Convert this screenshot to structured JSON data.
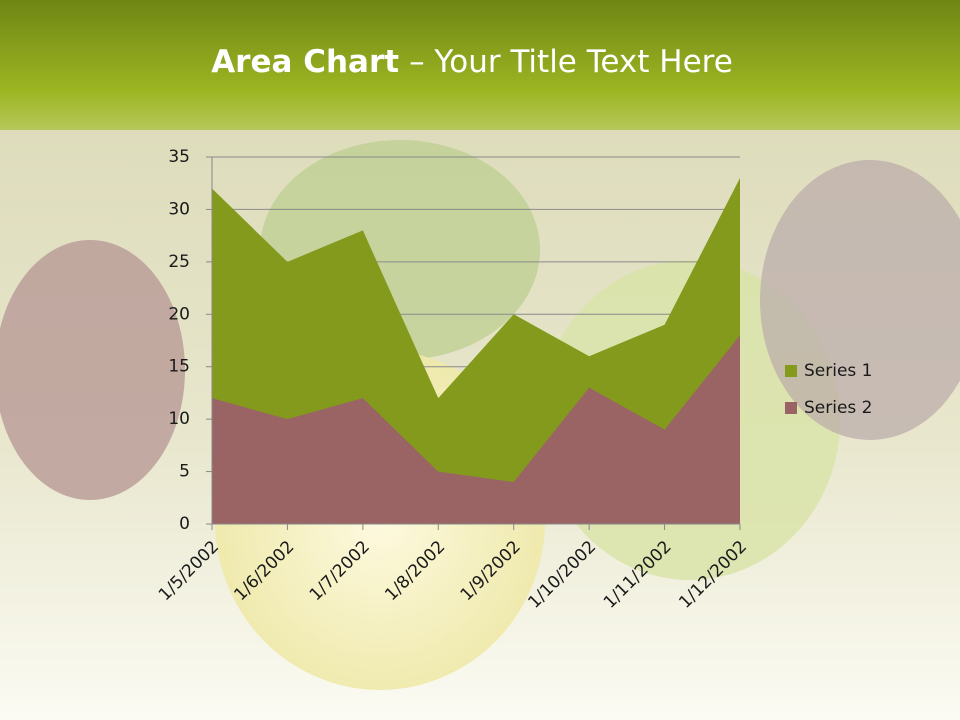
{
  "chart_data": {
    "type": "area",
    "title": "Area Chart",
    "subtitle": "– Your Title Text Here",
    "categories": [
      "1/5/2002",
      "1/6/2002",
      "1/7/2002",
      "1/8/2002",
      "1/9/2002",
      "1/10/2002",
      "1/11/2002",
      "1/12/2002"
    ],
    "series": [
      {
        "name": "Series 1",
        "color": "#839a1c",
        "values": [
          32,
          25,
          28,
          12,
          20,
          16,
          19,
          33
        ]
      },
      {
        "name": "Series 2",
        "color": "#9a6464",
        "values": [
          12,
          10,
          12,
          5,
          4,
          13,
          9,
          18
        ]
      }
    ],
    "ylim": [
      0,
      35
    ],
    "yticks": [
      0,
      5,
      10,
      15,
      20,
      25,
      30,
      35
    ],
    "grid": true,
    "legend": "right"
  }
}
